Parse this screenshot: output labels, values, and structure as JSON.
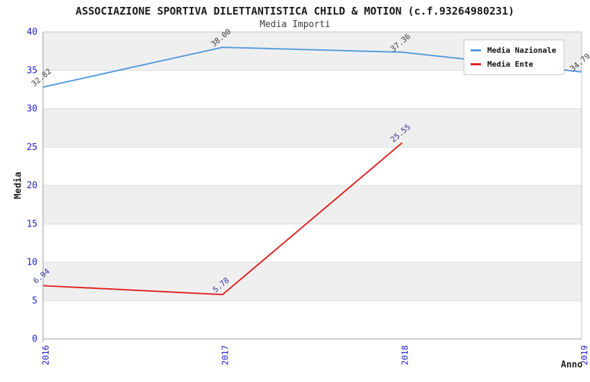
{
  "chart_data": {
    "type": "line",
    "title": "ASSOCIAZIONE SPORTIVA DILETTANTISTICA CHILD & MOTION (c.f.93264980231)",
    "subtitle": "Media Importi",
    "xlabel": "Anno",
    "ylabel": "Media",
    "categories": [
      "2016",
      "2017",
      "2018",
      "2019"
    ],
    "ylim": [
      0,
      40
    ],
    "yticks": [
      0,
      5,
      10,
      15,
      20,
      25,
      30,
      35,
      40
    ],
    "grid": "alternating-horizontal-bands",
    "legend_position": "top-right",
    "series": [
      {
        "name": "Media Nazionale",
        "color": "#5599dd",
        "label_color": "#3c3c3c",
        "values": [
          32.82,
          38.0,
          37.36,
          34.79
        ],
        "value_labels": [
          "32.82",
          "38.00",
          "37.36",
          "34.79"
        ]
      },
      {
        "name": "Media Ente",
        "color": "#e02020",
        "label_color": "#333399",
        "values": [
          6.94,
          5.78,
          25.55,
          null
        ],
        "value_labels": [
          "6.94",
          "5.78",
          "25.55"
        ]
      }
    ],
    "colors": {
      "tick_label": "#2222cc",
      "band_gray": "#efefef",
      "band_white": "#ffffff",
      "grid_line": "#dcdcdc",
      "plot_border": "#c0c0c0",
      "axis_line": "#999999",
      "title": "#1a1a1a",
      "subtitle": "#3a3a3a",
      "axis_title": "#222222",
      "legend_bg": "#ffffff",
      "legend_border": "#c8c8c8"
    }
  }
}
